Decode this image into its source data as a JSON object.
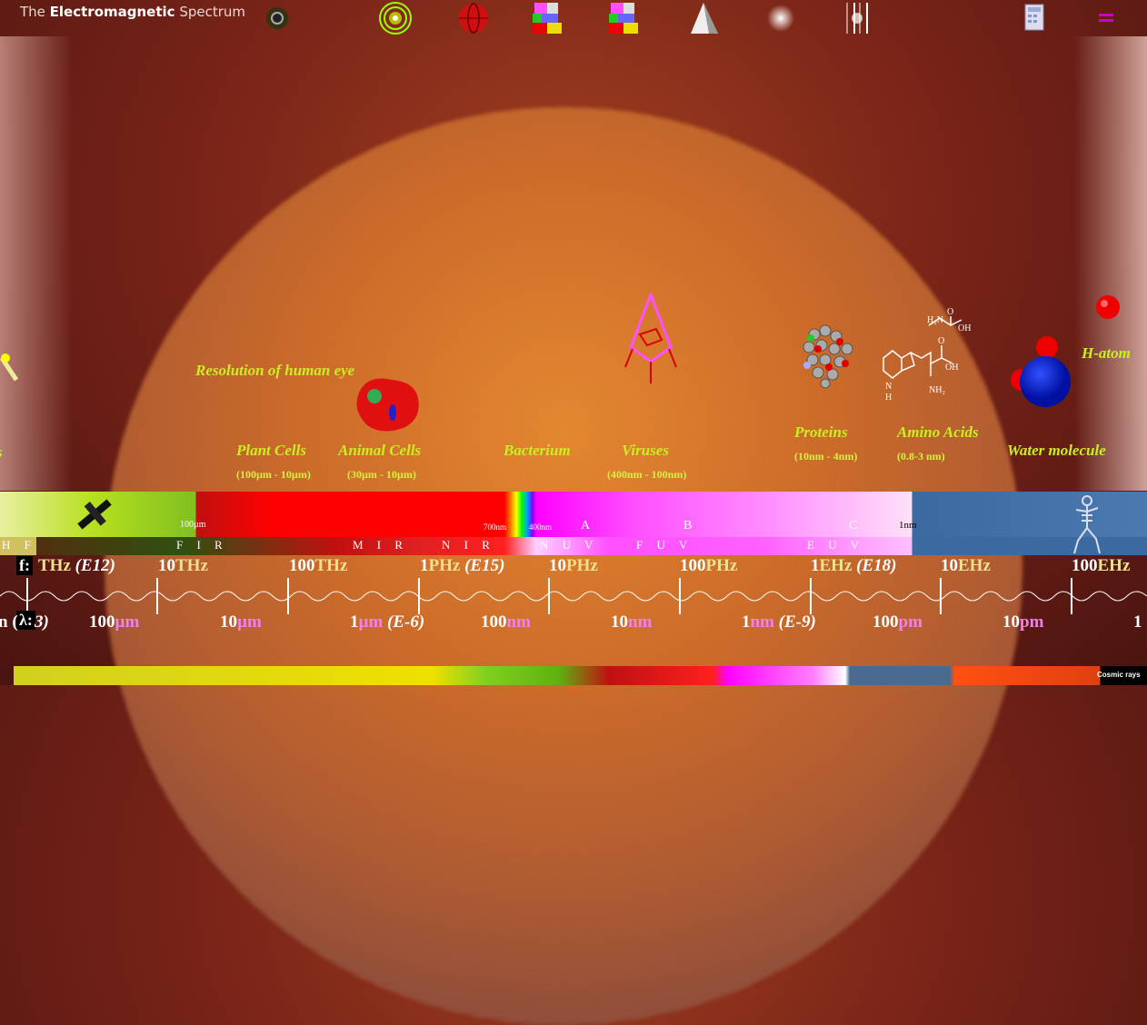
{
  "app": {
    "title_prefix": "The ",
    "title_bold": "Electromagnetic",
    "title_suffix": " Spectrum"
  },
  "toolbar_icons": [
    "eclipse-icon",
    "radio-ring-icon",
    "globe-icon",
    "color-blocks-icon",
    "color-blocks-icon-2",
    "prism-icon",
    "glow-icon",
    "lines-icon",
    "calculator-icon",
    "menu-icon"
  ],
  "objects": [
    {
      "label": "Resolution of human eye"
    },
    {
      "label": "Plant Cells",
      "range": "(100µm - 10µm)"
    },
    {
      "label": "Animal Cells",
      "range": "(30µm - 10µm)"
    },
    {
      "label": "Bacterium"
    },
    {
      "label": "Viruses",
      "range": "(400nm - 100nm)"
    },
    {
      "label": "Proteins",
      "range": "(10nm - 4nm)"
    },
    {
      "label": "Amino Acids",
      "range": "(0.8-3 nm)"
    },
    {
      "label": "Water molecule"
    },
    {
      "label": "H-atom"
    },
    {
      "label": "s"
    }
  ],
  "band": {
    "marks": [
      "100µm",
      "700nm",
      "400nm",
      "A",
      "B",
      "C",
      "1nm"
    ],
    "regions": [
      "H F",
      "F I R",
      "M I R",
      "N I R",
      "N U V",
      "F U V",
      "E U V"
    ]
  },
  "freq": {
    "badge": "f:",
    "labels": [
      {
        "num": "",
        "unit": "THz",
        "exp": "(E12)"
      },
      {
        "num": "10",
        "unit": "THz",
        "exp": ""
      },
      {
        "num": "100",
        "unit": "THz",
        "exp": ""
      },
      {
        "num": "1",
        "unit": "PHz",
        "exp": "(E15)"
      },
      {
        "num": "10",
        "unit": "PHz",
        "exp": ""
      },
      {
        "num": "100",
        "unit": "PHz",
        "exp": ""
      },
      {
        "num": "1",
        "unit": "EHz",
        "exp": "(E18)"
      },
      {
        "num": "10",
        "unit": "EHz",
        "exp": ""
      },
      {
        "num": "100",
        "unit": "EHz",
        "exp": ""
      }
    ]
  },
  "wave": {
    "badge": "λ:",
    "pre": "n (",
    "pre2": "3)",
    "labels": [
      {
        "num": "100",
        "unit": "µm",
        "exp": ""
      },
      {
        "num": "10",
        "unit": "µm",
        "exp": ""
      },
      {
        "num": "1",
        "unit": "µm",
        "exp": "(E-6)"
      },
      {
        "num": "100",
        "unit": "nm",
        "exp": ""
      },
      {
        "num": "10",
        "unit": "nm",
        "exp": ""
      },
      {
        "num": "1",
        "unit": "nm",
        "exp": "(E-9)"
      },
      {
        "num": "100",
        "unit": "pm",
        "exp": ""
      },
      {
        "num": "10",
        "unit": "pm",
        "exp": ""
      },
      {
        "num": "1",
        "unit": "",
        "exp": ""
      }
    ]
  },
  "bottom": {
    "cosmic": "Cosmic rays"
  }
}
